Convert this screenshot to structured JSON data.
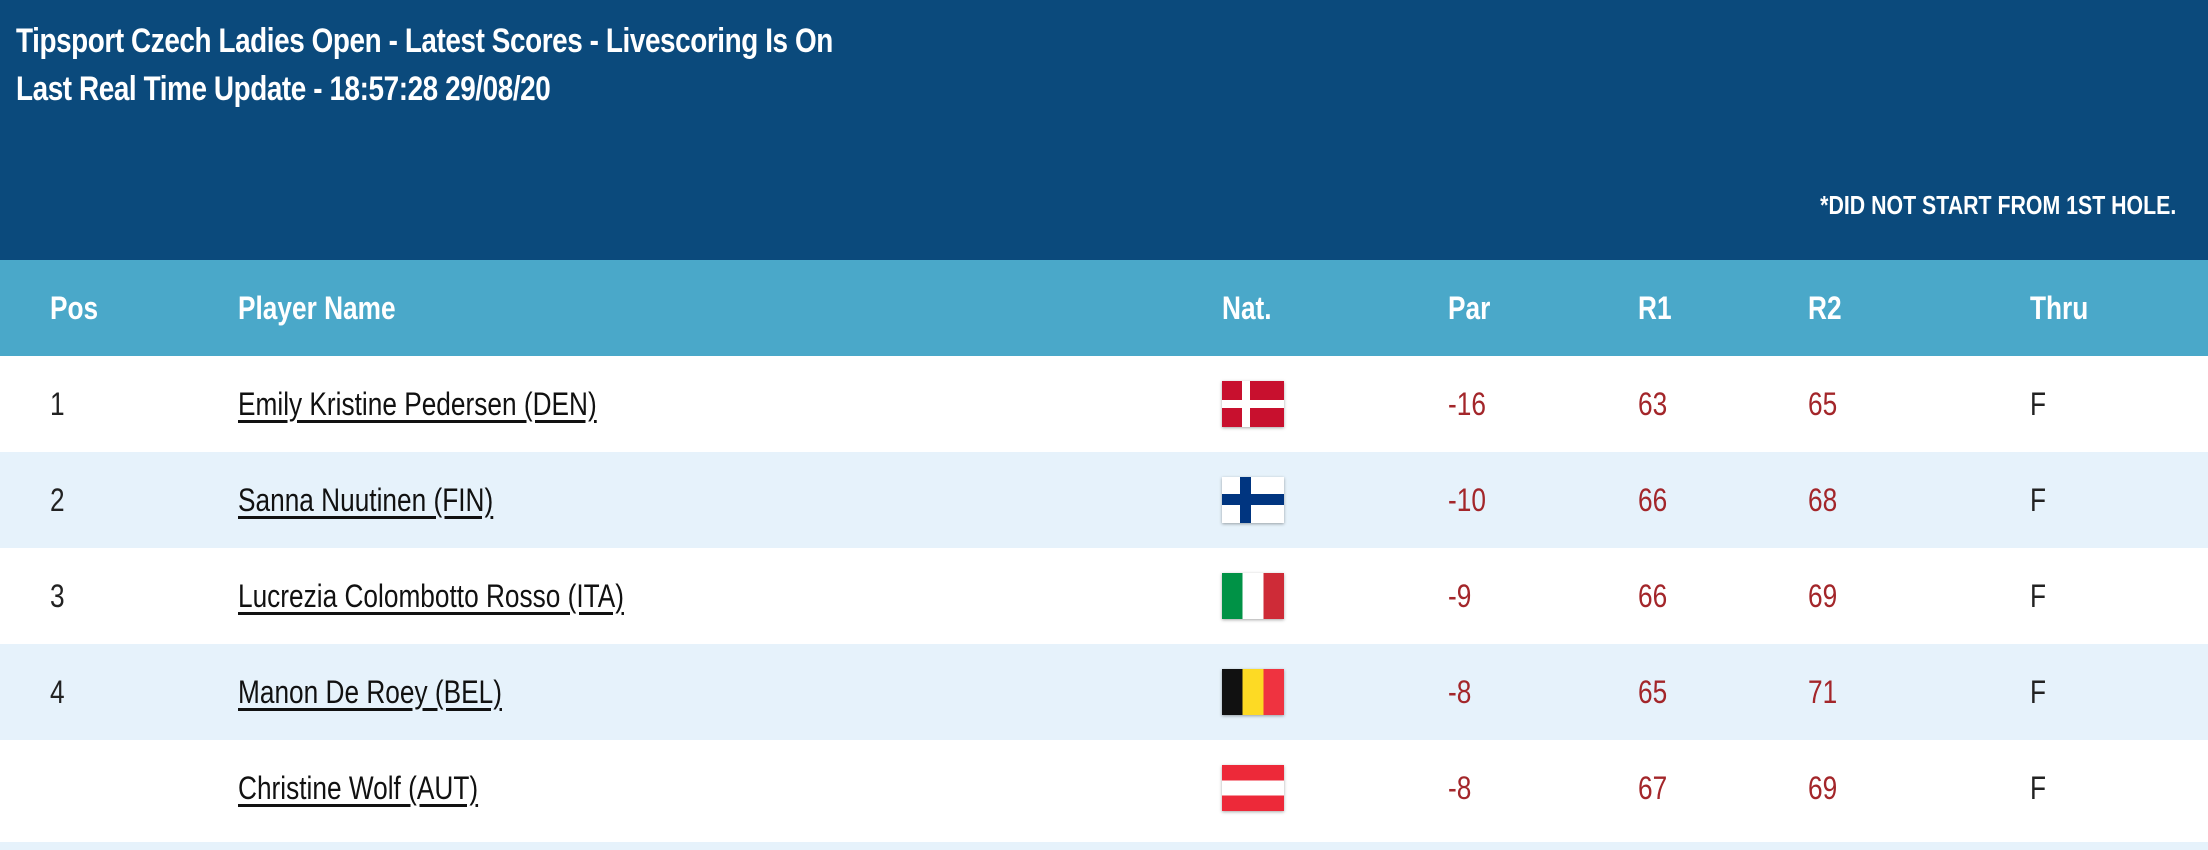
{
  "header": {
    "title": "Tipsport Czech Ladies Open - Latest Scores - Livescoring Is On",
    "update": "Last Real Time Update - 18:57:28 29/08/20",
    "note": "*DID NOT START FROM 1ST HOLE."
  },
  "columns": {
    "pos": "Pos",
    "name": "Player Name",
    "nat": "Nat.",
    "par": "Par",
    "r1": "R1",
    "r2": "R2",
    "thru": "Thru"
  },
  "rows": [
    {
      "pos": "1",
      "name": "Emily Kristine Pedersen (DEN)",
      "flag": "denmark-flag-icon",
      "par": "-16",
      "r1": "63",
      "r2": "65",
      "thru": "F"
    },
    {
      "pos": "2",
      "name": "Sanna Nuutinen (FIN)",
      "flag": "finland-flag-icon",
      "par": "-10",
      "r1": "66",
      "r2": "68",
      "thru": "F"
    },
    {
      "pos": "3",
      "name": "Lucrezia Colombotto Rosso (ITA)",
      "flag": "italy-flag-icon",
      "par": "-9",
      "r1": "66",
      "r2": "69",
      "thru": "F"
    },
    {
      "pos": "4",
      "name": "Manon De Roey (BEL)",
      "flag": "belgium-flag-icon",
      "par": "-8",
      "r1": "65",
      "r2": "71",
      "thru": "F"
    },
    {
      "pos": "",
      "name": "Christine Wolf (AUT)",
      "flag": "austria-flag-icon",
      "par": "-8",
      "r1": "67",
      "r2": "69",
      "thru": "F"
    }
  ],
  "colors": {
    "header_bg": "#0b4a7c",
    "table_header_bg": "#4aa8c9",
    "row_alt_bg": "#e6f2fb",
    "score_color": "#a3262a"
  }
}
